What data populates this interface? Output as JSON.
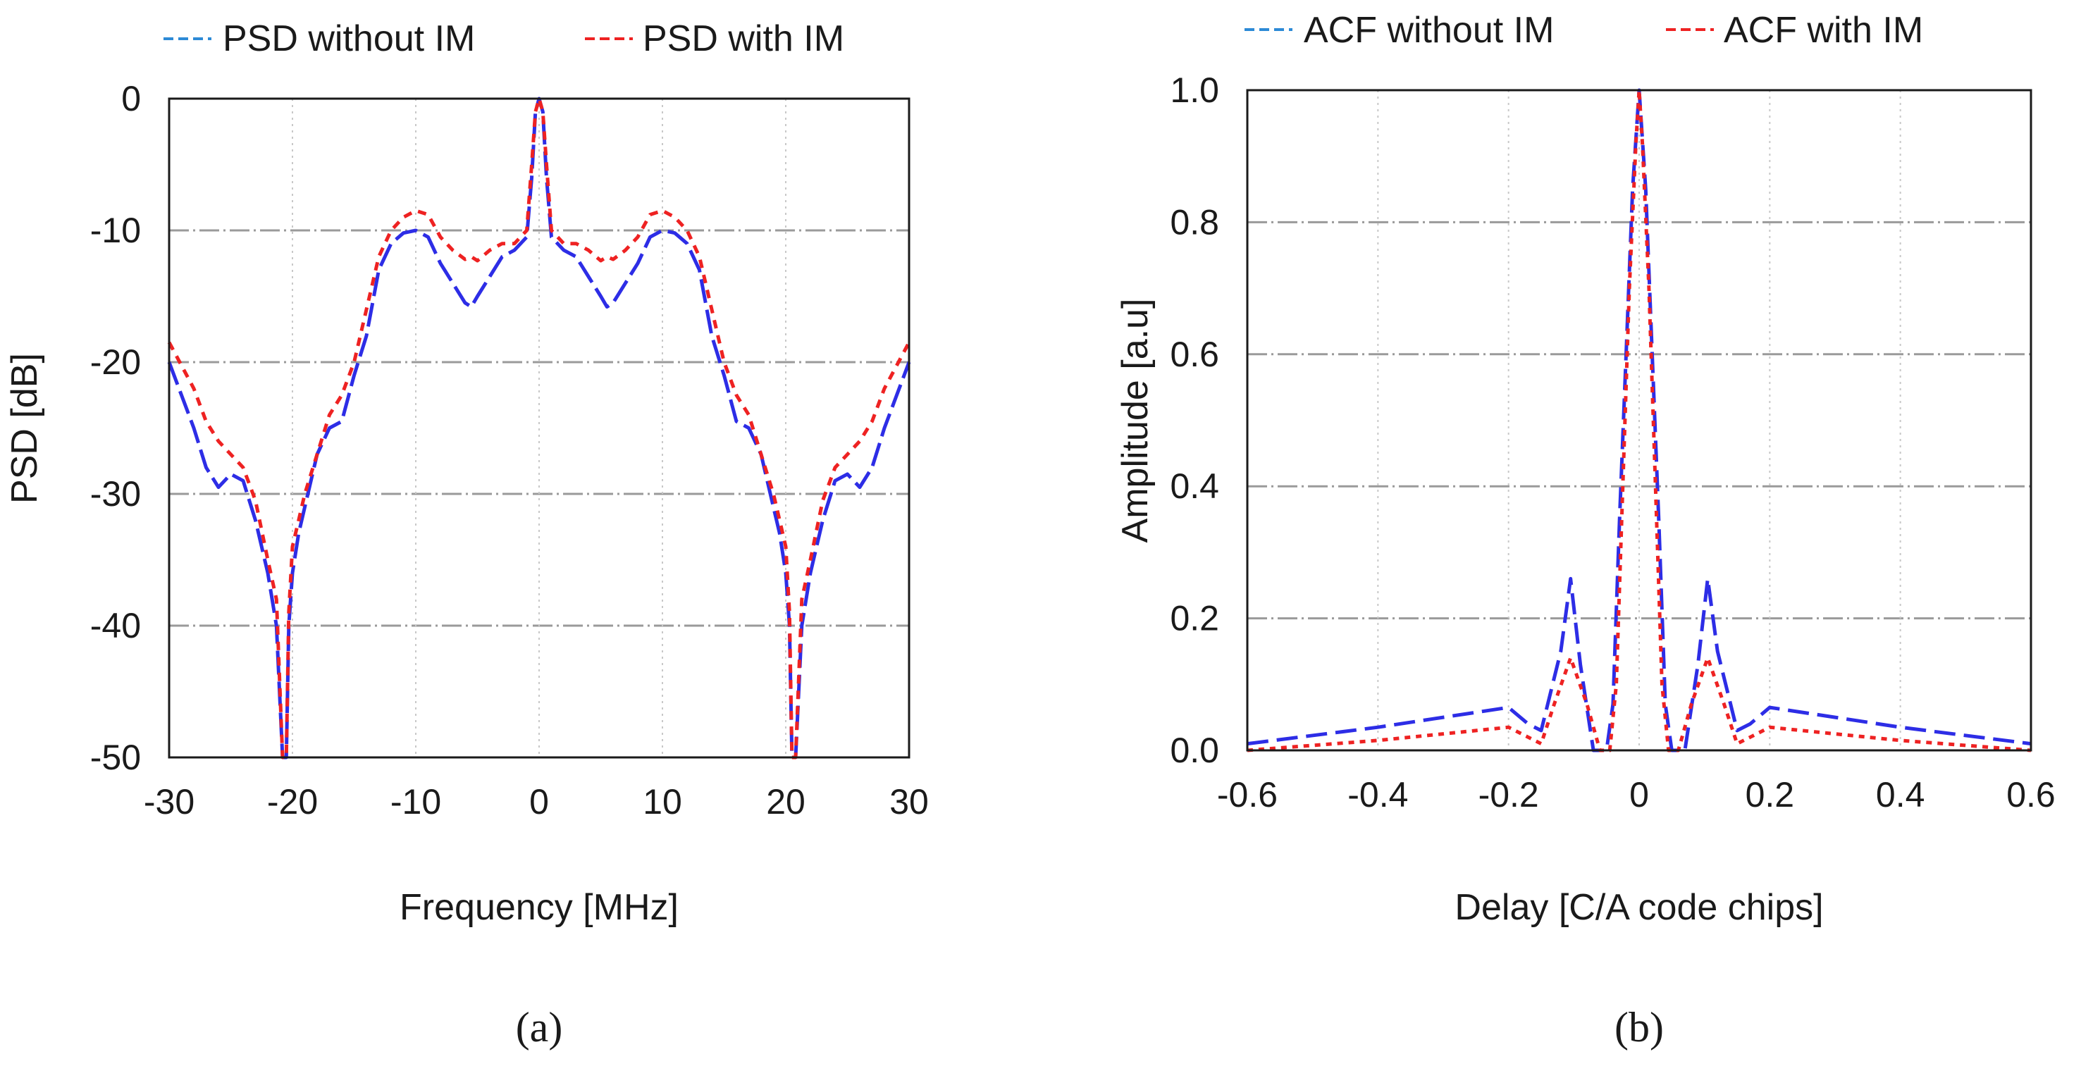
{
  "chart_data": [
    {
      "type": "line",
      "panel_label": "(a)",
      "title": "",
      "xlabel": "Frequency [MHz]",
      "ylabel": "PSD [dB]",
      "xlim": [
        -30,
        30
      ],
      "ylim": [
        -50,
        0
      ],
      "xticks": [
        "-30",
        "-20",
        "-10",
        "0",
        "10",
        "20",
        "30"
      ],
      "yticks": [
        "0",
        "-10",
        "-20",
        "-30",
        "-40",
        "-50"
      ],
      "legend": "top",
      "series": [
        {
          "name": "PSD without IM",
          "color": "#2d2de6",
          "x": [
            -30,
            -28,
            -27,
            -26,
            -25,
            -24,
            -23,
            -22,
            -21.3,
            -20.8,
            -20.5,
            -20.3,
            -20,
            -19.5,
            -19,
            -18,
            -17,
            -16,
            -15,
            -14,
            -13,
            -12,
            -11,
            -10,
            -9,
            -8,
            -7,
            -6,
            -5.5,
            -5,
            -4,
            -3,
            -2,
            -1,
            -0.6,
            -0.3,
            0,
            0.3,
            0.6,
            1,
            2,
            3,
            4,
            5,
            5.5,
            6,
            7,
            8,
            9,
            10,
            11,
            12,
            13,
            14,
            15,
            16,
            17,
            18,
            19,
            19.5,
            20,
            20.3,
            20.5,
            20.8,
            21.3,
            22,
            23,
            24,
            25,
            26,
            27,
            28,
            30
          ],
          "y": [
            -20,
            -25,
            -28,
            -29.5,
            -28.5,
            -29,
            -32,
            -36,
            -40,
            -50,
            -50,
            -40,
            -36,
            -33,
            -31,
            -27,
            -25,
            -24.5,
            -21,
            -18,
            -13,
            -11,
            -10.2,
            -10,
            -10.5,
            -12.5,
            -14,
            -15.5,
            -15.8,
            -15,
            -13.5,
            -12,
            -11.5,
            -10.5,
            -6,
            -1,
            0,
            -1,
            -6,
            -10.5,
            -11.5,
            -12,
            -13.5,
            -15,
            -15.8,
            -15.5,
            -14,
            -12.5,
            -10.5,
            -10,
            -10.2,
            -11,
            -13,
            -18,
            -21,
            -24.5,
            -25,
            -27,
            -31,
            -33,
            -36,
            -40,
            -50,
            -50,
            -40,
            -36,
            -32,
            -29,
            -28.5,
            -29.5,
            -28,
            -25,
            -20
          ]
        },
        {
          "name": "PSD with IM",
          "color": "#ee2222",
          "x": [
            -30,
            -28,
            -27,
            -26,
            -25,
            -24,
            -23,
            -22,
            -21.3,
            -20.8,
            -20.5,
            -20.3,
            -20,
            -19.5,
            -19,
            -18,
            -17,
            -16,
            -15,
            -14,
            -13,
            -12,
            -11,
            -10,
            -9,
            -8,
            -7,
            -6,
            -5.5,
            -5,
            -4,
            -3,
            -2,
            -1,
            -0.6,
            -0.3,
            0,
            0.3,
            0.6,
            1,
            2,
            3,
            4,
            5,
            5.5,
            6,
            7,
            8,
            9,
            10,
            11,
            12,
            13,
            14,
            15,
            16,
            17,
            18,
            19,
            19.5,
            20,
            20.3,
            20.5,
            20.8,
            21.3,
            22,
            23,
            24,
            25,
            26,
            27,
            28,
            30
          ],
          "y": [
            -18.5,
            -22,
            -24.5,
            -26,
            -27,
            -28,
            -30.5,
            -35,
            -38,
            -50,
            -50,
            -39,
            -34,
            -32,
            -30,
            -27,
            -24,
            -22.5,
            -20,
            -16,
            -12,
            -10,
            -9,
            -8.5,
            -8.8,
            -10.5,
            -11.5,
            -12.2,
            -12,
            -12.3,
            -11.5,
            -11,
            -11,
            -10,
            -5,
            -1,
            0,
            -1,
            -5,
            -10,
            -11,
            -11,
            -11.5,
            -12.3,
            -12,
            -12.2,
            -11.5,
            -10.5,
            -8.8,
            -8.5,
            -9,
            -10,
            -12,
            -16,
            -20,
            -22.5,
            -24,
            -27,
            -30,
            -32,
            -34,
            -39,
            -50,
            -50,
            -38,
            -35,
            -30.5,
            -28,
            -27,
            -26,
            -24.5,
            -22,
            -18.5
          ]
        }
      ]
    },
    {
      "type": "line",
      "panel_label": "(b)",
      "title": "",
      "xlabel": "Delay [C/A code chips]",
      "ylabel": "Amplitude [a.u]",
      "xlim": [
        -0.6,
        0.6
      ],
      "ylim": [
        0,
        1.0
      ],
      "xticks": [
        "-0.6",
        "-0.4",
        "-0.2",
        "0",
        "0.2",
        "0.4",
        "0.6"
      ],
      "yticks": [
        "1.0",
        "0.8",
        "0.6",
        "0.4",
        "0.2",
        "0.0"
      ],
      "legend": "top",
      "series": [
        {
          "name": "ACF without IM",
          "color": "#2d2de6",
          "x": [
            -0.6,
            -0.4,
            -0.3,
            -0.2,
            -0.17,
            -0.15,
            -0.12,
            -0.105,
            -0.09,
            -0.07,
            -0.05,
            -0.04,
            -0.03,
            -0.02,
            -0.01,
            0,
            0.01,
            0.02,
            0.03,
            0.04,
            0.05,
            0.07,
            0.09,
            0.105,
            0.12,
            0.15,
            0.17,
            0.2,
            0.3,
            0.4,
            0.6
          ],
          "y": [
            0.01,
            0.035,
            0.05,
            0.065,
            0.04,
            0.03,
            0.15,
            0.26,
            0.13,
            0.0,
            0.0,
            0.07,
            0.35,
            0.6,
            0.85,
            1.0,
            0.85,
            0.6,
            0.35,
            0.07,
            0.0,
            0.0,
            0.13,
            0.26,
            0.15,
            0.03,
            0.04,
            0.065,
            0.05,
            0.035,
            0.01
          ]
        },
        {
          "name": "ACF with IM",
          "color": "#ee2222",
          "x": [
            -0.6,
            -0.4,
            -0.3,
            -0.2,
            -0.17,
            -0.15,
            -0.13,
            -0.105,
            -0.08,
            -0.06,
            -0.045,
            -0.035,
            -0.025,
            -0.015,
            -0.005,
            0,
            0.005,
            0.015,
            0.025,
            0.035,
            0.045,
            0.06,
            0.08,
            0.105,
            0.13,
            0.15,
            0.17,
            0.2,
            0.3,
            0.4,
            0.6
          ],
          "y": [
            0.0,
            0.015,
            0.025,
            0.035,
            0.02,
            0.01,
            0.07,
            0.14,
            0.07,
            0.0,
            0.0,
            0.1,
            0.4,
            0.7,
            0.92,
            1.0,
            0.92,
            0.7,
            0.4,
            0.1,
            0.0,
            0.0,
            0.07,
            0.14,
            0.07,
            0.01,
            0.02,
            0.035,
            0.025,
            0.015,
            0.0
          ]
        }
      ]
    }
  ]
}
